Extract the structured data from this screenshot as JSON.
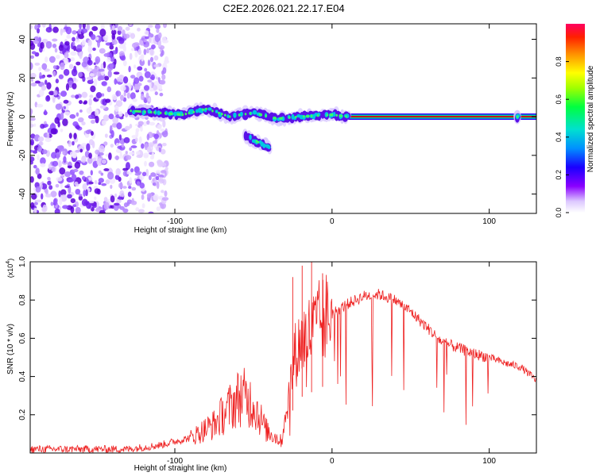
{
  "title": "C2E2.2026.021.22.17.E04",
  "colors": {
    "snr_line": "#ee2222",
    "zero_line": "#cc1111",
    "outline": "#000000"
  },
  "chart_data": [
    {
      "type": "heatmap",
      "xlabel": "Height of straight line (km)",
      "ylabel": "Frequency (Hz)",
      "xlim": [
        -192,
        130
      ],
      "ylim": [
        -50,
        48
      ],
      "x_ticks": [
        -100,
        0,
        100
      ],
      "x_tick_labels": [
        "-100",
        "0",
        "100"
      ],
      "y_ticks": [
        -40,
        -20,
        0,
        20,
        40
      ],
      "y_tick_labels": [
        "-40",
        "-20",
        "0",
        "20",
        "40"
      ],
      "noise_region_x": [
        -192,
        -105
      ],
      "zero_line": {
        "y": 0,
        "x_range": [
          5,
          130
        ]
      },
      "features": [
        {
          "name": "main-track",
          "points": [
            [
              -128,
              3
            ],
            [
              -110,
              2
            ],
            [
              -95,
              1
            ],
            [
              -80,
              4
            ],
            [
              -65,
              0
            ],
            [
              -50,
              2
            ],
            [
              -35,
              -1
            ],
            [
              -20,
              0
            ],
            [
              0,
              1
            ],
            [
              10,
              0
            ]
          ]
        },
        {
          "name": "descending-branch",
          "points": [
            [
              -55,
              -10
            ],
            [
              -45,
              -14
            ],
            [
              -40,
              -16
            ]
          ]
        },
        {
          "name": "isolated-spot",
          "points": [
            [
              118,
              0
            ]
          ]
        }
      ],
      "colorbar": {
        "label": "Normalized spectral amplitude",
        "range": [
          0,
          1
        ],
        "ticks": [
          0.0,
          0.2,
          0.4,
          0.6,
          0.8
        ],
        "tick_labels": [
          "0.0",
          "0.2",
          "0.4",
          "0.6",
          "0.8"
        ]
      }
    },
    {
      "type": "line",
      "xlabel": "Height of straight line (km)",
      "ylabel": "SNR (10 * v/v)",
      "scale_label": "(x10",
      "scale_exp": "4",
      "scale_close": ")",
      "xlim": [
        -192,
        130
      ],
      "ylim": [
        0,
        1.0
      ],
      "x_ticks": [
        -100,
        0,
        100
      ],
      "x_tick_labels": [
        "-100",
        "0",
        "100"
      ],
      "y_ticks": [
        0.2,
        0.4,
        0.6,
        0.8,
        1.0
      ],
      "y_tick_labels": [
        "0.2",
        "0.4",
        "0.6",
        "0.8",
        "1.0"
      ],
      "series": [
        {
          "name": "SNR",
          "envelope": [
            [
              -192,
              0.02
            ],
            [
              -130,
              0.02
            ],
            [
              -110,
              0.04
            ],
            [
              -90,
              0.08
            ],
            [
              -75,
              0.15
            ],
            [
              -65,
              0.24
            ],
            [
              -58,
              0.3
            ],
            [
              -50,
              0.26
            ],
            [
              -42,
              0.12
            ],
            [
              -32,
              0.06
            ],
            [
              -28,
              0.28
            ],
            [
              -24,
              0.5
            ],
            [
              -20,
              0.58
            ],
            [
              -15,
              0.62
            ],
            [
              -10,
              0.66
            ],
            [
              -5,
              0.7
            ],
            [
              0,
              0.73
            ],
            [
              10,
              0.78
            ],
            [
              20,
              0.82
            ],
            [
              30,
              0.83
            ],
            [
              40,
              0.8
            ],
            [
              50,
              0.74
            ],
            [
              60,
              0.66
            ],
            [
              70,
              0.58
            ],
            [
              80,
              0.55
            ],
            [
              90,
              0.52
            ],
            [
              100,
              0.5
            ],
            [
              110,
              0.47
            ],
            [
              120,
              0.45
            ],
            [
              130,
              0.38
            ]
          ],
          "peaks": [
            [
              -13,
              1.0
            ],
            [
              -25,
              0.92
            ],
            [
              -19,
              0.98
            ],
            [
              -6,
              0.94
            ]
          ]
        }
      ]
    }
  ]
}
